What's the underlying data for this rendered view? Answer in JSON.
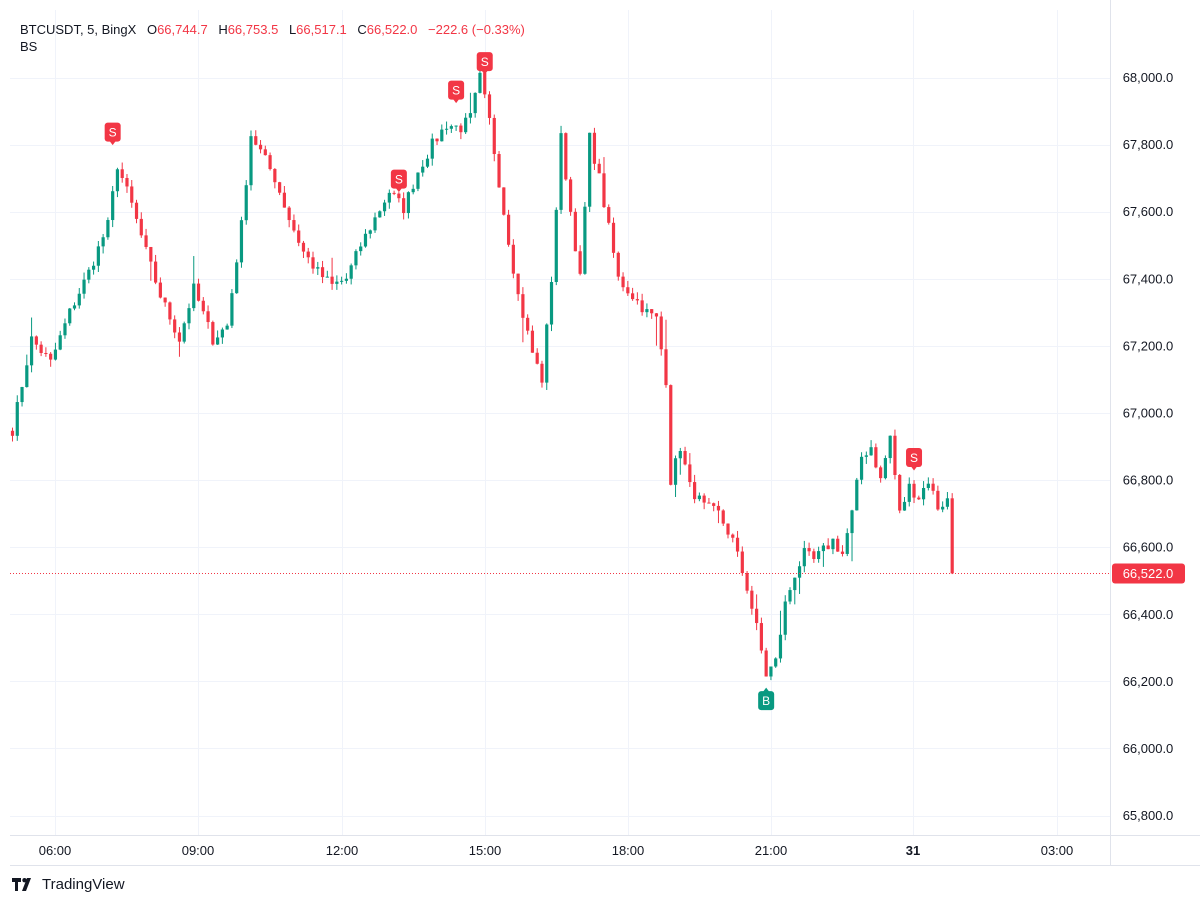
{
  "legend": {
    "symbol": "BTCUSDT, 5, BingX",
    "o_label": "O",
    "o_value": "66,744.7",
    "h_label": "H",
    "h_value": "66,753.5",
    "l_label": "L",
    "l_value": "66,517.1",
    "c_label": "C",
    "c_value": "66,522.0",
    "change": "−222.6 (−0.33%)"
  },
  "indicator": "BS",
  "brand": "TradingView",
  "colors": {
    "up": "#089981",
    "down": "#f23645",
    "grid": "#f0f3fa",
    "marker_sell": "#f23645",
    "marker_buy": "#089981"
  },
  "chart_data": {
    "type": "candlestick",
    "x_ticks": [
      "06:00",
      "09:00",
      "12:00",
      "15:00",
      "18:00",
      "21:00",
      "31",
      "03:00"
    ],
    "y_ticks": [
      "68,000.0",
      "67,800.0",
      "67,600.0",
      "67,400.0",
      "67,200.0",
      "67,000.0",
      "66,800.0",
      "66,600.0",
      "66,400.0",
      "66,200.0",
      "66,000.0",
      "65,800.0"
    ],
    "y_range": [
      65750,
      68250
    ],
    "last_price": 66522.0,
    "last_price_label": "66,522.0",
    "path": [
      [
        0,
        66950
      ],
      [
        4,
        67220
      ],
      [
        8,
        67150
      ],
      [
        12,
        67300
      ],
      [
        16,
        67420
      ],
      [
        20,
        67560
      ],
      [
        22,
        67740
      ],
      [
        25,
        67620
      ],
      [
        28,
        67480
      ],
      [
        31,
        67350
      ],
      [
        35,
        67220
      ],
      [
        38,
        67370
      ],
      [
        42,
        67220
      ],
      [
        45,
        67260
      ],
      [
        48,
        67560
      ],
      [
        50,
        67830
      ],
      [
        52,
        67780
      ],
      [
        55,
        67700
      ],
      [
        58,
        67580
      ],
      [
        61,
        67480
      ],
      [
        64,
        67420
      ],
      [
        67,
        67380
      ],
      [
        70,
        67400
      ],
      [
        73,
        67500
      ],
      [
        76,
        67580
      ],
      [
        79,
        67660
      ],
      [
        82,
        67610
      ],
      [
        85,
        67720
      ],
      [
        88,
        67800
      ],
      [
        91,
        67860
      ],
      [
        94,
        67850
      ],
      [
        96,
        67880
      ],
      [
        98,
        68000
      ],
      [
        100,
        67870
      ],
      [
        103,
        67600
      ],
      [
        106,
        67350
      ],
      [
        109,
        67180
      ],
      [
        111,
        67100
      ],
      [
        113,
        67400
      ],
      [
        115,
        67820
      ],
      [
        117,
        67600
      ],
      [
        119,
        67400
      ],
      [
        121,
        67820
      ],
      [
        123,
        67700
      ],
      [
        125,
        67550
      ],
      [
        127,
        67400
      ],
      [
        130,
        67350
      ],
      [
        133,
        67300
      ],
      [
        135,
        67280
      ],
      [
        137,
        67100
      ],
      [
        138,
        66800
      ],
      [
        140,
        66900
      ],
      [
        142,
        66780
      ],
      [
        145,
        66720
      ],
      [
        148,
        66700
      ],
      [
        151,
        66620
      ],
      [
        154,
        66480
      ],
      [
        156,
        66360
      ],
      [
        158,
        66220
      ],
      [
        160,
        66260
      ],
      [
        162,
        66430
      ],
      [
        164,
        66520
      ],
      [
        166,
        66580
      ],
      [
        168,
        66560
      ],
      [
        170,
        66590
      ],
      [
        172,
        66620
      ],
      [
        174,
        66580
      ],
      [
        176,
        66700
      ],
      [
        178,
        66870
      ],
      [
        180,
        66900
      ],
      [
        182,
        66800
      ],
      [
        184,
        66930
      ],
      [
        186,
        66700
      ],
      [
        188,
        66780
      ],
      [
        190,
        66750
      ],
      [
        192,
        66800
      ],
      [
        194,
        66720
      ],
      [
        196,
        66740
      ],
      [
        197,
        66522
      ]
    ],
    "markers": [
      {
        "type": "S",
        "candle": 21,
        "price": 67800
      },
      {
        "type": "S",
        "candle": 81,
        "price": 67660
      },
      {
        "type": "S",
        "candle": 93,
        "price": 67925
      },
      {
        "type": "S",
        "candle": 99,
        "price": 68010
      },
      {
        "type": "B",
        "candle": 158,
        "price": 66180
      },
      {
        "type": "S",
        "candle": 189,
        "price": 66830
      }
    ]
  }
}
